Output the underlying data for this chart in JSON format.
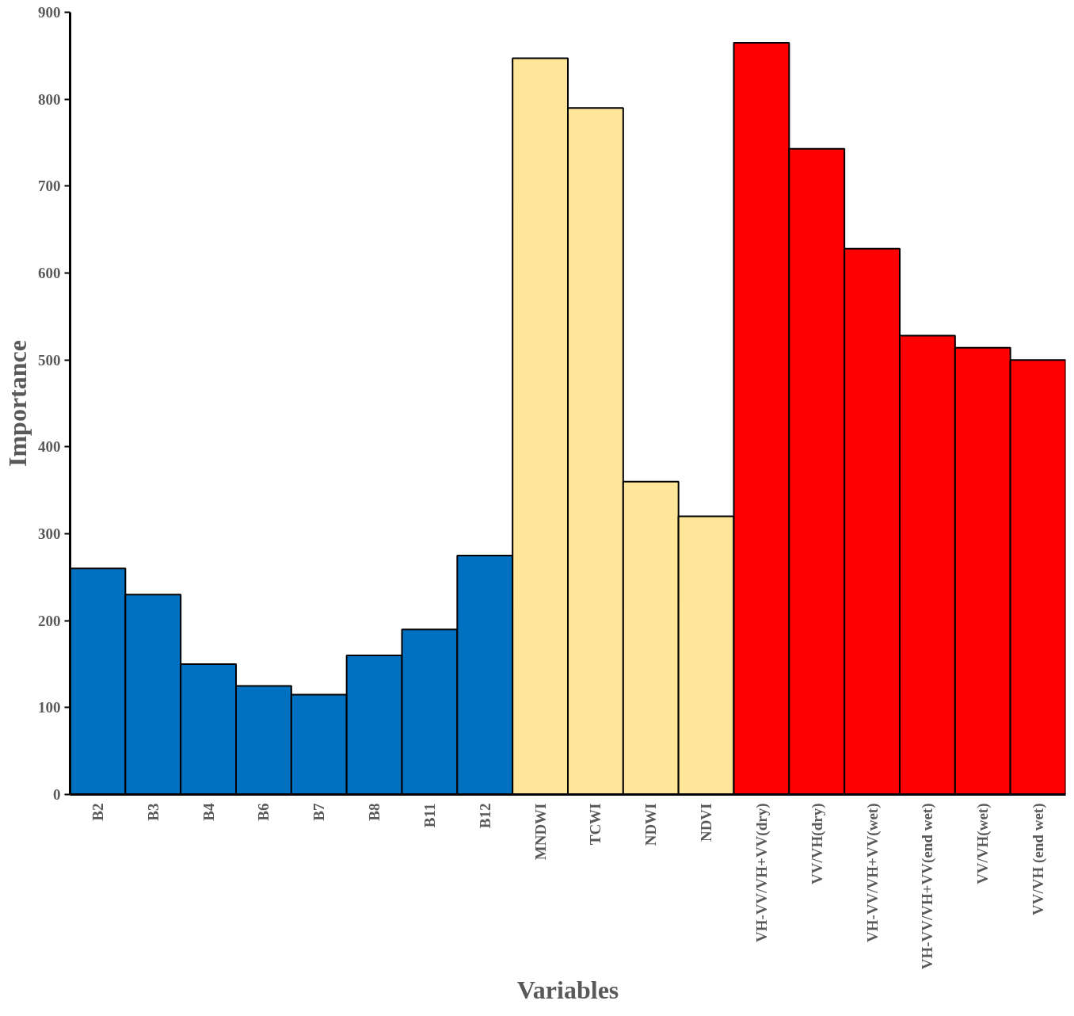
{
  "chart_data": {
    "type": "bar",
    "xlabel": "Variables",
    "ylabel": "Importance",
    "categories": [
      "B2",
      "B3",
      "B4",
      "B6",
      "B7",
      "B8",
      "B11",
      "B12",
      "MNDWI",
      "TCWI",
      "NDWI",
      "NDVI",
      "VH-VV/VH+VV(dry)",
      "VV/VH(dry)",
      "VH-VV/VH+VV(wet)",
      "VH-VV/VH+VV(end wet)",
      "VV/VH(wet)",
      "VV/VH (end wet)"
    ],
    "values": [
      260,
      230,
      150,
      125,
      115,
      160,
      190,
      275,
      847,
      790,
      360,
      320,
      865,
      743,
      628,
      528,
      514,
      500
    ],
    "colors": [
      "#0070c0",
      "#0070c0",
      "#0070c0",
      "#0070c0",
      "#0070c0",
      "#0070c0",
      "#0070c0",
      "#0070c0",
      "#ffe699",
      "#ffe699",
      "#ffe699",
      "#ffe699",
      "#ff0000",
      "#ff0000",
      "#ff0000",
      "#ff0000",
      "#ff0000",
      "#ff0000"
    ],
    "ylim": [
      0,
      900
    ],
    "yticks": [
      0,
      100,
      200,
      300,
      400,
      500,
      600,
      700,
      800,
      900
    ],
    "grid": false
  }
}
